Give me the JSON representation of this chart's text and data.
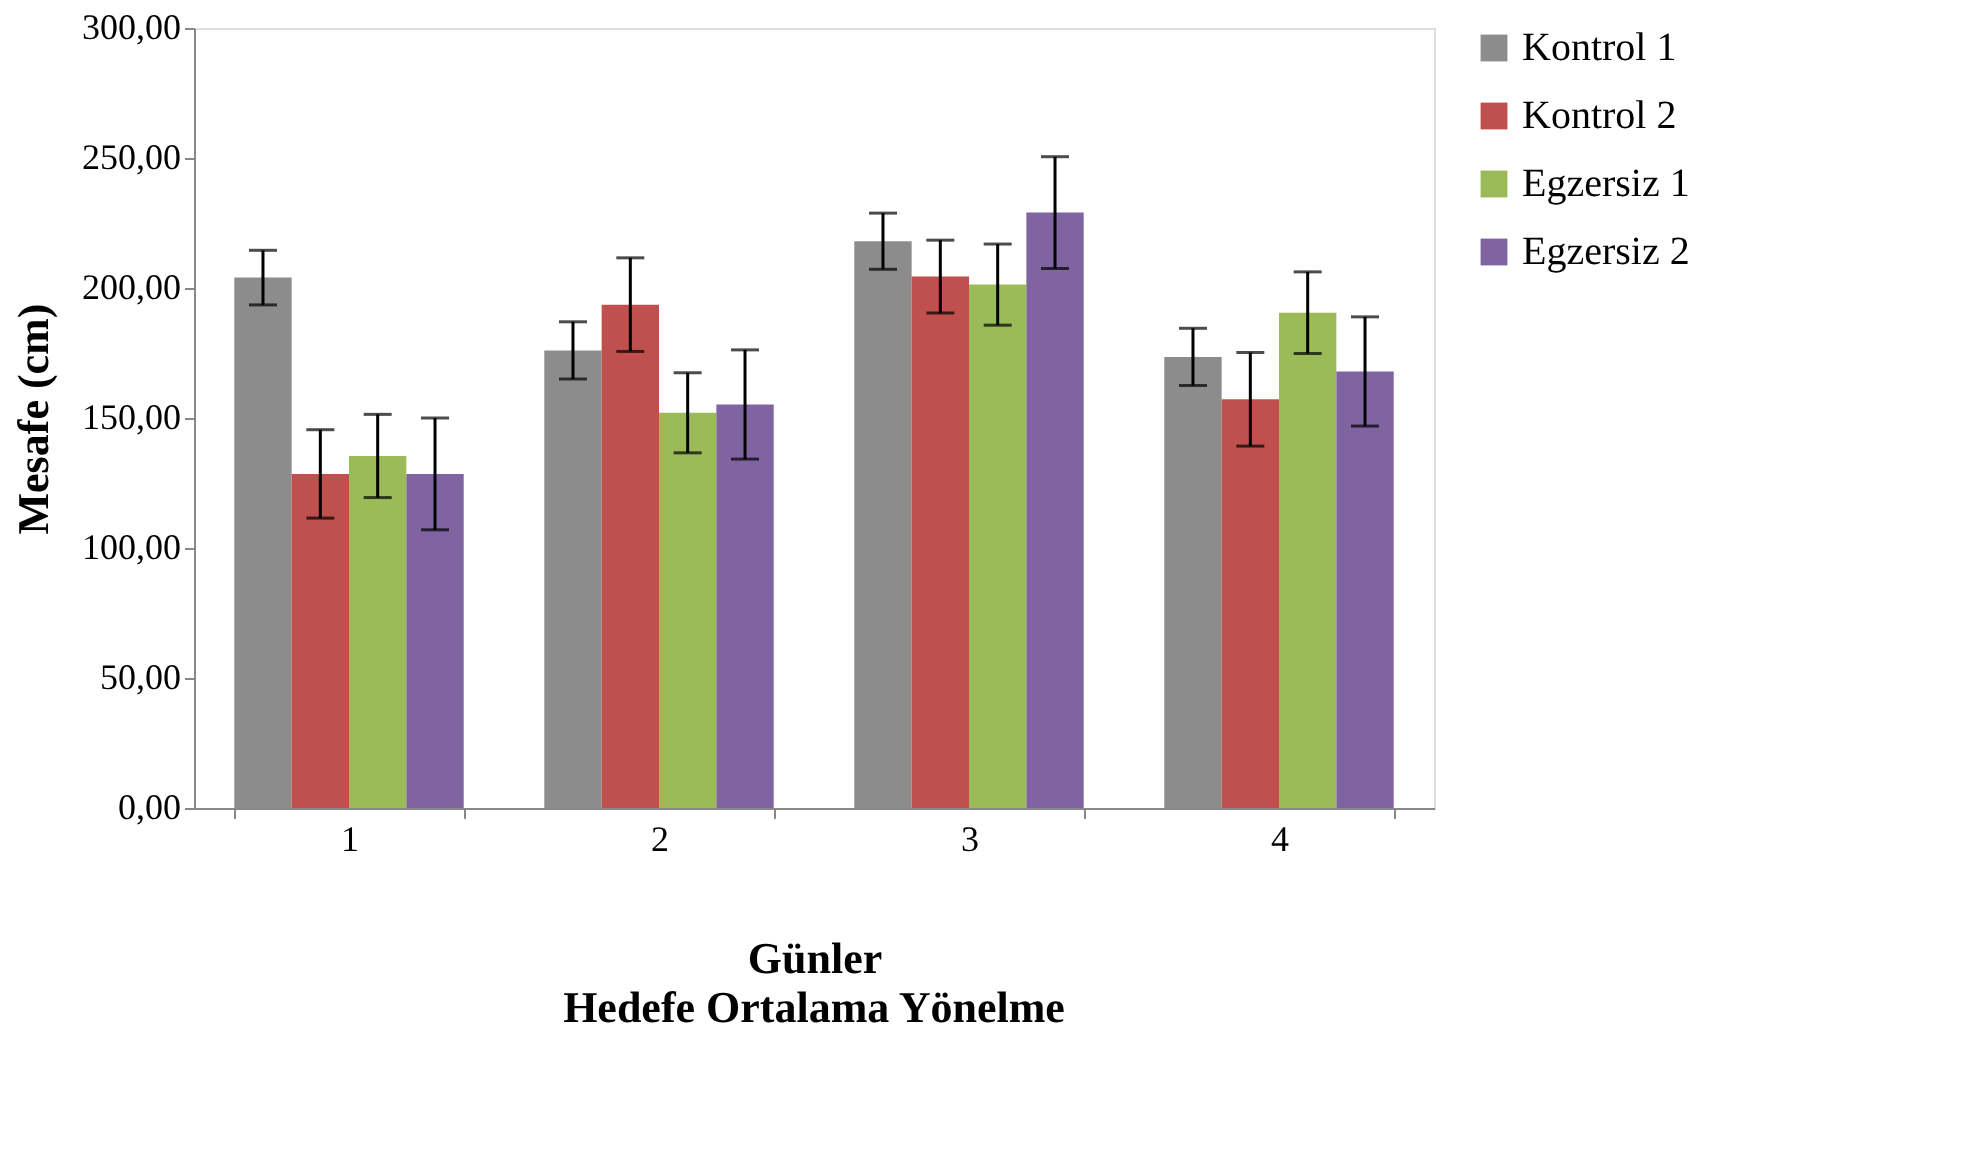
{
  "chart_data": {
    "type": "bar",
    "title": "Hedefe Ortalama Yönelme",
    "xlabel": "Günler",
    "ylabel": "Mesafe (cm)",
    "categories": [
      "1",
      "2",
      "3",
      "4"
    ],
    "series": [
      {
        "name": "Kontrol 1",
        "color": "#8c8c8c",
        "values": [
          204,
          176,
          218,
          173.5
        ],
        "errors": [
          10.5,
          11,
          10.8,
          11
        ]
      },
      {
        "name": "Kontrol 2",
        "color": "#c0504d",
        "values": [
          128.5,
          193.6,
          204.4,
          157.2
        ],
        "errors": [
          17,
          18,
          14,
          18
        ]
      },
      {
        "name": "Egzersiz 1",
        "color": "#9bbb59",
        "values": [
          135.4,
          152,
          201.3,
          190.5
        ],
        "errors": [
          16,
          15.4,
          15.6,
          15.7
        ]
      },
      {
        "name": "Egzersiz 2",
        "color": "#8064a2",
        "values": [
          128.5,
          155.2,
          229,
          167.9
        ],
        "errors": [
          21.5,
          21,
          21.5,
          21
        ]
      }
    ],
    "ylim": [
      0,
      300
    ],
    "yticks": [
      {
        "value": 0,
        "label": "0,00"
      },
      {
        "value": 50,
        "label": "50,00"
      },
      {
        "value": 100,
        "label": "100,00"
      },
      {
        "value": 150,
        "label": "150,00"
      },
      {
        "value": 200,
        "label": "200,00"
      },
      {
        "value": 250,
        "label": "250,00"
      },
      {
        "value": 300,
        "label": "300,00"
      }
    ],
    "grid": false,
    "legend": "right"
  }
}
